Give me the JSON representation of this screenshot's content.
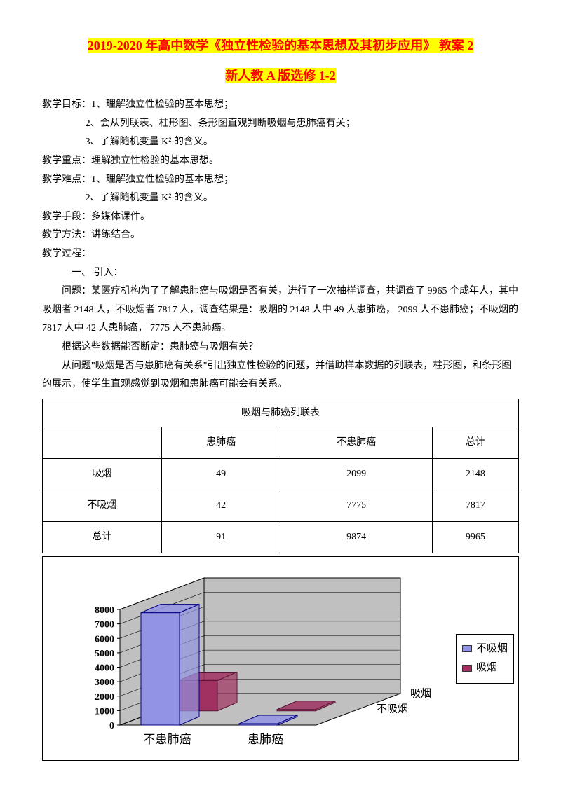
{
  "titles": {
    "line1": "2019-2020 年高中数学《独立性检验的基本思想及其初步应用》  教案 2",
    "line2": "新人教 A 版选修 1-2"
  },
  "lines": {
    "goal_label": "教学目标：",
    "goal1": "1、理解独立性检验的基本思想；",
    "goal2": "2、会从列联表、柱形图、条形图直观判断吸烟与患肺癌有关；",
    "goal3": "3、了解随机变量 K² 的含义。",
    "focus_label": "教学重点：",
    "focus": "理解独立性检验的基本思想。",
    "diff_label": "教学难点：",
    "diff1": "1、理解独立性检验的基本思想；",
    "diff2": "2、了解随机变量 K² 的含义。",
    "means_label": "教学手段：",
    "means": "多媒体课件。",
    "method_label": "教学方法：",
    "method": "讲练结合。",
    "process_label": "教学过程：",
    "sec1": "一、 引入：",
    "p1": "问题：某医疗机构为了了解患肺癌与吸烟是否有关，进行了一次抽样调查，共调查了 9965 个成年人，其中吸烟者 2148 人，不吸烟者 7817  人，调查结果是：吸烟的 2148  人中 49 人患肺癌，  2099 人不患肺癌；不吸烟的 7817 人中 42 人患肺癌，  7775 人不患肺癌。",
    "p2": "根据这些数据能否断定：患肺癌与吸烟有关？",
    "p3": "从问题\"吸烟是否与患肺癌有关系\"引出独立性检验的问题，并借助样本数据的列联表，柱形图，和条形图的展示，使学生直观感觉到吸烟和患肺癌可能会有关系。"
  },
  "table": {
    "caption": "吸烟与肺癌列联表",
    "headers": [
      "",
      "患肺癌",
      "不患肺癌",
      "总计"
    ],
    "rows": [
      [
        "吸烟",
        "49",
        "2099",
        "2148"
      ],
      [
        "不吸烟",
        "42",
        "7775",
        "7817"
      ],
      [
        "总计",
        "91",
        "9874",
        "9965"
      ]
    ]
  },
  "chart": {
    "type": "3d-bar",
    "background_color": "#c0c0c0",
    "y_ticks": [
      "8000",
      "7000",
      "6000",
      "5000",
      "4000",
      "3000",
      "2000",
      "1000",
      "0"
    ],
    "ymax": 8000,
    "categories_x": [
      "不患肺癌",
      "患肺癌"
    ],
    "categories_z": [
      "不吸烟",
      "吸烟"
    ],
    "series": [
      {
        "name": "不吸烟",
        "color": "#9393e3",
        "edge": "#000080",
        "values": [
          7775,
          42
        ]
      },
      {
        "name": "吸烟",
        "color": "#a03060",
        "edge": "#5a1838",
        "values": [
          2099,
          49
        ]
      }
    ],
    "legend": [
      {
        "label": "不吸烟",
        "color": "#9393e3"
      },
      {
        "label": "吸烟",
        "color": "#a03060"
      }
    ],
    "axis_label_fontsize": 15,
    "tick_fontsize": 14
  }
}
